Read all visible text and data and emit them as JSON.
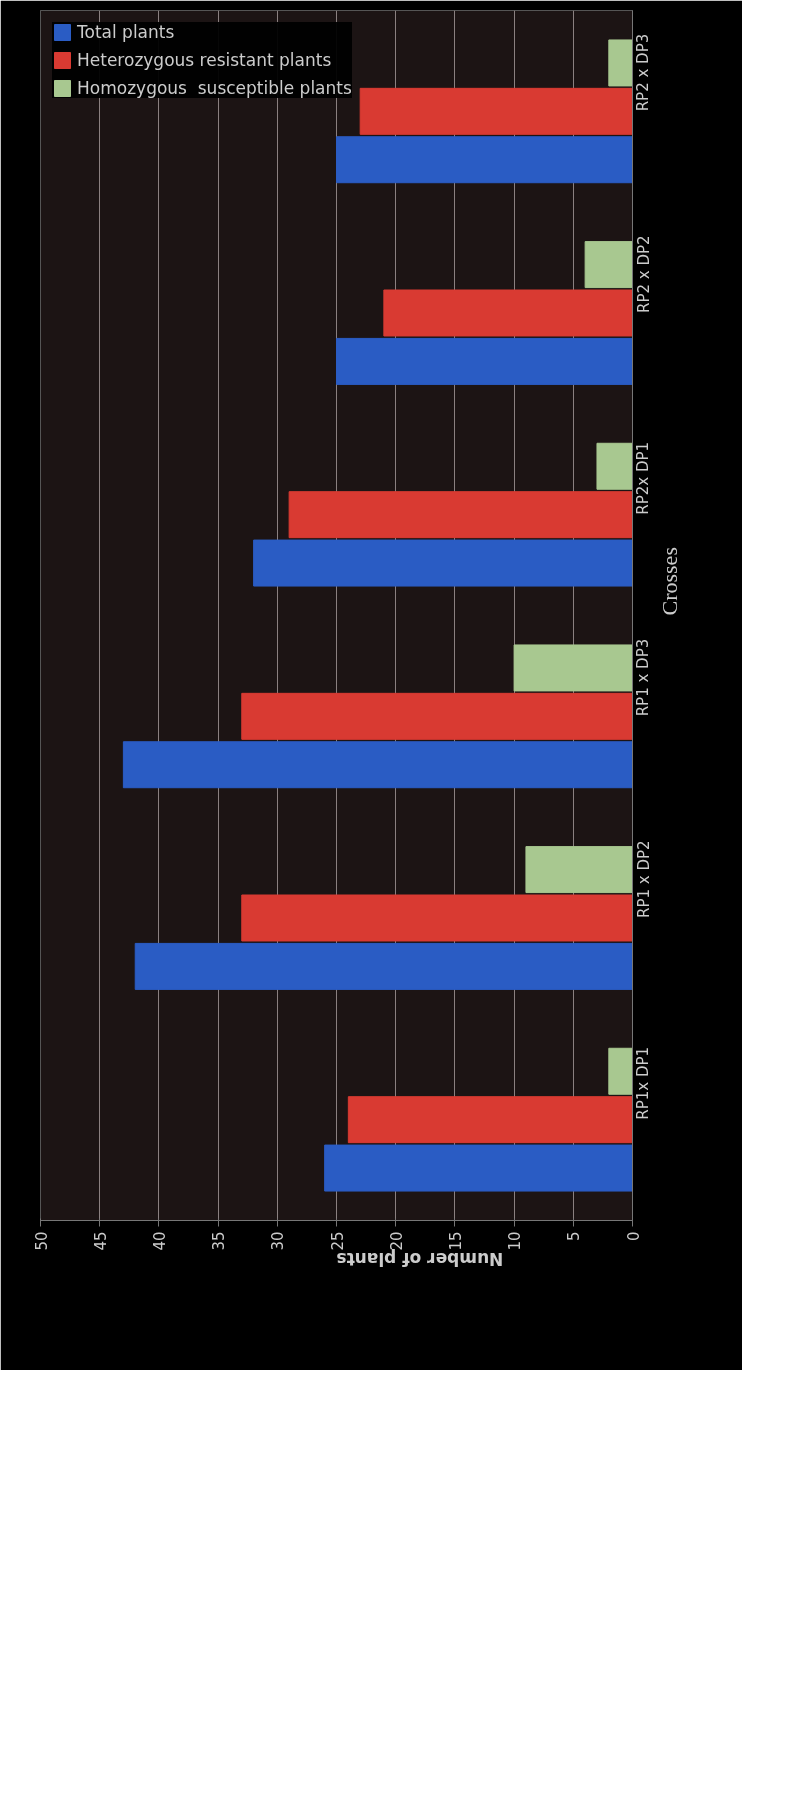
{
  "chart_data": {
    "type": "bar",
    "orientation": "horizontal",
    "xlabel": "Number of plants",
    "ylabel": "Crosses",
    "categories": [
      "RP2 x DP3",
      "RP2 x DP2",
      "RP2x DP1",
      "RP1 x DP3",
      "RP1 x DP2",
      "RP1x DP1"
    ],
    "series": [
      {
        "name": "Homozygous  susceptible plants",
        "color": "#a8c890",
        "values": [
          2,
          4,
          3,
          10,
          9,
          2
        ]
      },
      {
        "name": "Heterozygous resistant plants",
        "color": "#d93a32",
        "values": [
          23,
          21,
          29,
          33,
          33,
          24
        ]
      },
      {
        "name": "Total plants",
        "color": "#2a5cc4",
        "values": [
          25,
          25,
          32,
          43,
          42,
          26
        ]
      }
    ],
    "xlim": [
      50,
      0
    ],
    "xticks": [
      0,
      5,
      10,
      15,
      20,
      25,
      30,
      35,
      40,
      45,
      50
    ],
    "grid": "x",
    "legend": "top left"
  }
}
